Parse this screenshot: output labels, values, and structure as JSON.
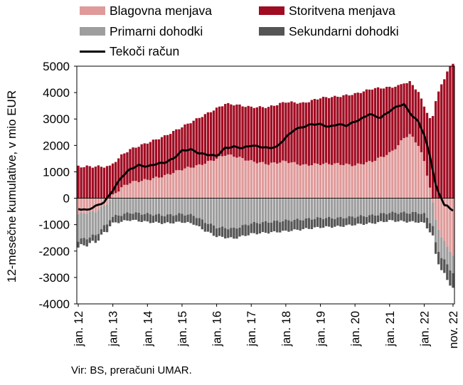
{
  "chart_data": {
    "type": "bar",
    "stacked": true,
    "ylabel": "12-mesečne kumulative, v mio EUR",
    "ylim": [
      -4000,
      5000
    ],
    "yticks": [
      5000,
      4000,
      3000,
      2000,
      1000,
      0,
      -1000,
      -2000,
      -3000,
      -4000
    ],
    "x_tick_labels": [
      "jan. 12",
      "jan. 13",
      "jan. 14",
      "jan. 15",
      "jan. 16",
      "jan. 17",
      "jan. 18",
      "jan. 19",
      "jan. 20",
      "jan. 21",
      "jan. 22",
      "nov. 22"
    ],
    "x_start": "jan. 12",
    "x_end": "nov. 22",
    "grid": false,
    "legend_position": "top",
    "series": [
      {
        "name": "Blagovna menjava",
        "color": "#e09a9a",
        "kind": "bar",
        "anchors": [
          [
            0,
            -600
          ],
          [
            6,
            -500
          ],
          [
            10,
            -200
          ],
          [
            12,
            100
          ],
          [
            15,
            400
          ],
          [
            18,
            600
          ],
          [
            24,
            700
          ],
          [
            30,
            850
          ],
          [
            36,
            1100
          ],
          [
            42,
            1250
          ],
          [
            48,
            1500
          ],
          [
            51,
            1650
          ],
          [
            54,
            1600
          ],
          [
            60,
            1400
          ],
          [
            66,
            1300
          ],
          [
            72,
            1400
          ],
          [
            78,
            1250
          ],
          [
            84,
            1300
          ],
          [
            90,
            1300
          ],
          [
            96,
            1250
          ],
          [
            102,
            1400
          ],
          [
            108,
            1700
          ],
          [
            111,
            2000
          ],
          [
            113,
            2300
          ],
          [
            115,
            2400
          ],
          [
            116,
            2300
          ],
          [
            118,
            2000
          ],
          [
            120,
            1400
          ],
          [
            122,
            400
          ],
          [
            124,
            -800
          ],
          [
            126,
            -1500
          ],
          [
            128,
            -1800
          ],
          [
            130,
            -2200
          ],
          [
            130,
            -2500
          ]
        ]
      },
      {
        "name": "Storitvena menjava",
        "color": "#a00c22",
        "kind": "bar",
        "anchors": [
          [
            0,
            1200
          ],
          [
            6,
            1200
          ],
          [
            12,
            1200
          ],
          [
            18,
            1250
          ],
          [
            24,
            1400
          ],
          [
            30,
            1500
          ],
          [
            36,
            1600
          ],
          [
            42,
            1800
          ],
          [
            48,
            1900
          ],
          [
            54,
            1950
          ],
          [
            60,
            2050
          ],
          [
            66,
            2150
          ],
          [
            72,
            2250
          ],
          [
            78,
            2350
          ],
          [
            84,
            2500
          ],
          [
            90,
            2550
          ],
          [
            96,
            2700
          ],
          [
            102,
            2750
          ],
          [
            108,
            2500
          ],
          [
            114,
            2000
          ],
          [
            118,
            2000
          ],
          [
            120,
            2100
          ],
          [
            122,
            2600
          ],
          [
            124,
            3700
          ],
          [
            126,
            4300
          ],
          [
            128,
            4800
          ],
          [
            130,
            5100
          ]
        ]
      },
      {
        "name": "Primarni dohodki",
        "color": "#9e9e9e",
        "kind": "bar",
        "anchors": [
          [
            0,
            -1000
          ],
          [
            6,
            -900
          ],
          [
            12,
            -700
          ],
          [
            18,
            -550
          ],
          [
            24,
            -600
          ],
          [
            30,
            -650
          ],
          [
            36,
            -600
          ],
          [
            40,
            -650
          ],
          [
            44,
            -900
          ],
          [
            48,
            -1100
          ],
          [
            54,
            -1150
          ],
          [
            60,
            -950
          ],
          [
            66,
            -900
          ],
          [
            72,
            -850
          ],
          [
            78,
            -800
          ],
          [
            84,
            -750
          ],
          [
            90,
            -750
          ],
          [
            96,
            -700
          ],
          [
            102,
            -650
          ],
          [
            108,
            -550
          ],
          [
            114,
            -550
          ],
          [
            118,
            -550
          ],
          [
            120,
            -600
          ],
          [
            122,
            -900
          ],
          [
            124,
            -900
          ],
          [
            126,
            -750
          ],
          [
            128,
            -700
          ],
          [
            130,
            -650
          ]
        ]
      },
      {
        "name": "Sekundarni dohodki",
        "color": "#555555",
        "kind": "bar",
        "anchors": [
          [
            0,
            -250
          ],
          [
            12,
            -250
          ],
          [
            24,
            -300
          ],
          [
            36,
            -300
          ],
          [
            48,
            -350
          ],
          [
            60,
            -400
          ],
          [
            72,
            -400
          ],
          [
            84,
            -350
          ],
          [
            96,
            -300
          ],
          [
            108,
            -300
          ],
          [
            116,
            -350
          ],
          [
            120,
            -350
          ],
          [
            124,
            -400
          ],
          [
            126,
            -500
          ],
          [
            128,
            -550
          ],
          [
            130,
            -600
          ]
        ]
      },
      {
        "name": "Tekoči račun",
        "color": "#000000",
        "kind": "line",
        "anchors": [
          [
            0,
            -400
          ],
          [
            3,
            -450
          ],
          [
            6,
            -300
          ],
          [
            9,
            -150
          ],
          [
            12,
            300
          ],
          [
            15,
            800
          ],
          [
            18,
            1100
          ],
          [
            21,
            1250
          ],
          [
            24,
            1200
          ],
          [
            27,
            1300
          ],
          [
            30,
            1350
          ],
          [
            33,
            1500
          ],
          [
            36,
            1800
          ],
          [
            39,
            1850
          ],
          [
            42,
            1700
          ],
          [
            45,
            1650
          ],
          [
            48,
            1600
          ],
          [
            51,
            1900
          ],
          [
            54,
            1950
          ],
          [
            57,
            1900
          ],
          [
            60,
            2000
          ],
          [
            63,
            1950
          ],
          [
            66,
            1900
          ],
          [
            69,
            1950
          ],
          [
            72,
            2300
          ],
          [
            75,
            2600
          ],
          [
            78,
            2700
          ],
          [
            81,
            2800
          ],
          [
            84,
            2800
          ],
          [
            87,
            2700
          ],
          [
            90,
            2800
          ],
          [
            93,
            2750
          ],
          [
            96,
            2900
          ],
          [
            99,
            3050
          ],
          [
            101,
            3200
          ],
          [
            103,
            3100
          ],
          [
            105,
            3050
          ],
          [
            108,
            3300
          ],
          [
            111,
            3500
          ],
          [
            113,
            3550
          ],
          [
            114,
            3400
          ],
          [
            116,
            3100
          ],
          [
            118,
            2900
          ],
          [
            120,
            2400
          ],
          [
            122,
            1600
          ],
          [
            124,
            500
          ],
          [
            125,
            200
          ],
          [
            126,
            0
          ],
          [
            127,
            -250
          ],
          [
            128,
            -300
          ],
          [
            129,
            -400
          ],
          [
            130,
            -450
          ]
        ]
      }
    ]
  },
  "source": "Vir: BS, preračuni UMAR."
}
